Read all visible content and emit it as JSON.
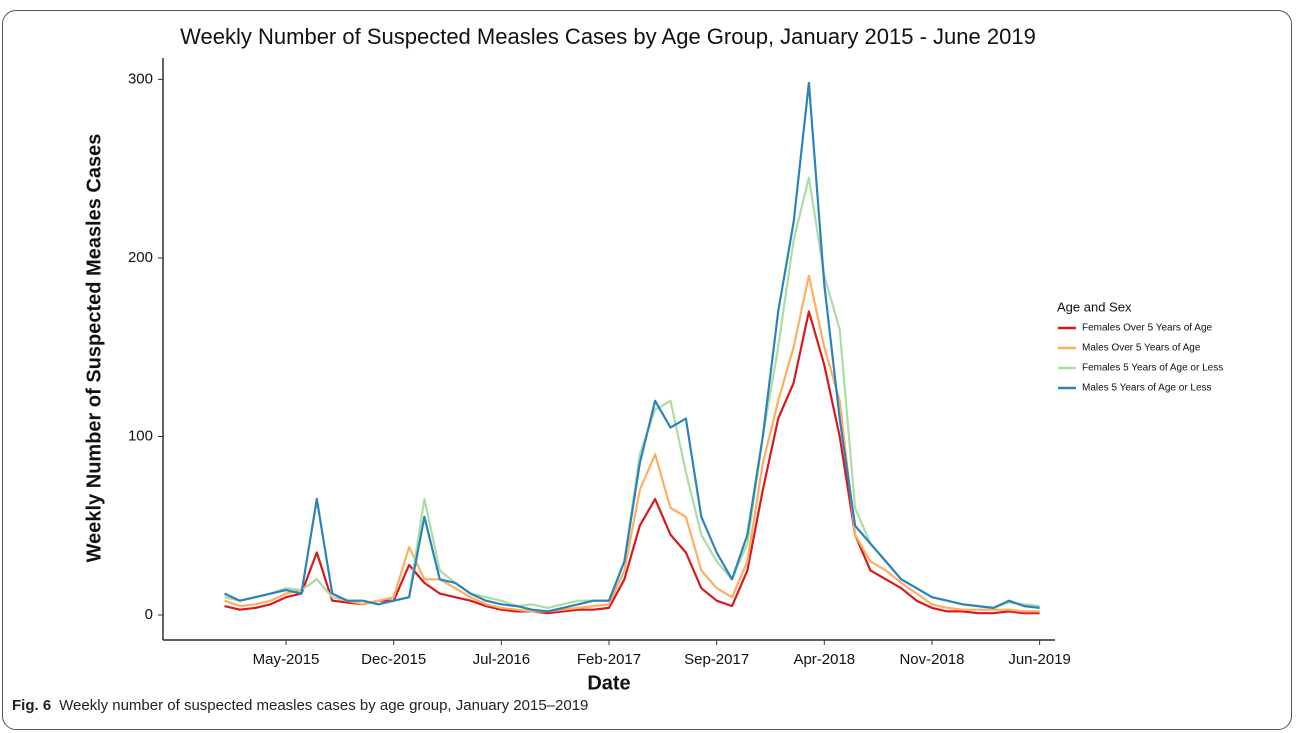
{
  "chart_data": {
    "type": "line",
    "title": "Weekly Number of Suspected Measles Cases by Age Group, January 2015 - June 2019",
    "xlabel": "Date",
    "ylabel": "Weekly Number of Suspected Measles Cases",
    "legend_title": "Age and Sex",
    "legend_position": "right",
    "x": [
      "2015-01",
      "2015-02",
      "2015-03",
      "2015-04",
      "2015-05",
      "2015-06",
      "2015-07",
      "2015-08",
      "2015-09",
      "2015-10",
      "2015-11",
      "2015-12",
      "2016-01",
      "2016-02",
      "2016-03",
      "2016-04",
      "2016-05",
      "2016-06",
      "2016-07",
      "2016-08",
      "2016-09",
      "2016-10",
      "2016-11",
      "2016-12",
      "2017-01",
      "2017-02",
      "2017-03",
      "2017-04",
      "2017-05",
      "2017-06",
      "2017-07",
      "2017-08",
      "2017-09",
      "2017-10",
      "2017-11",
      "2017-12",
      "2018-01",
      "2018-02",
      "2018-03",
      "2018-04",
      "2018-05",
      "2018-06",
      "2018-07",
      "2018-08",
      "2018-09",
      "2018-10",
      "2018-11",
      "2018-12",
      "2019-01",
      "2019-02",
      "2019-03",
      "2019-04",
      "2019-05",
      "2019-06"
    ],
    "xlim": [
      "2014-09",
      "2019-07"
    ],
    "xticks": [
      {
        "value": "2015-05",
        "label": "May-2015"
      },
      {
        "value": "2015-12",
        "label": "Dec-2015"
      },
      {
        "value": "2016-07",
        "label": "Jul-2016"
      },
      {
        "value": "2017-02",
        "label": "Feb-2017"
      },
      {
        "value": "2017-09",
        "label": "Sep-2017"
      },
      {
        "value": "2018-04",
        "label": "Apr-2018"
      },
      {
        "value": "2018-11",
        "label": "Nov-2018"
      },
      {
        "value": "2019-06",
        "label": "Jun-2019"
      }
    ],
    "ylim": [
      -14,
      312
    ],
    "yticks": [
      0,
      100,
      200,
      300
    ],
    "grid": false,
    "series": [
      {
        "name": "Females Over 5 Years of Age",
        "color": "#d7191c",
        "values": [
          5,
          3,
          4,
          6,
          10,
          12,
          35,
          8,
          7,
          6,
          8,
          8,
          28,
          18,
          12,
          10,
          8,
          5,
          3,
          2,
          2,
          1,
          2,
          3,
          3,
          4,
          20,
          50,
          65,
          45,
          35,
          15,
          8,
          5,
          25,
          70,
          110,
          130,
          170,
          140,
          100,
          45,
          25,
          20,
          15,
          8,
          4,
          2,
          2,
          1,
          1,
          2,
          1,
          1
        ]
      },
      {
        "name": "Males Over 5 Years of Age",
        "color": "#fdae61",
        "values": [
          8,
          5,
          6,
          8,
          12,
          14,
          20,
          10,
          8,
          6,
          8,
          10,
          38,
          20,
          20,
          15,
          10,
          6,
          4,
          3,
          2,
          2,
          3,
          4,
          5,
          6,
          25,
          70,
          90,
          60,
          55,
          25,
          15,
          10,
          30,
          85,
          120,
          150,
          190,
          150,
          120,
          45,
          30,
          25,
          18,
          12,
          6,
          4,
          3,
          3,
          3,
          3,
          2,
          2
        ]
      },
      {
        "name": "Females 5 Years of Age or Less",
        "color": "#abdda4",
        "values": [
          10,
          8,
          10,
          12,
          15,
          14,
          20,
          10,
          8,
          8,
          6,
          8,
          10,
          65,
          25,
          18,
          12,
          10,
          8,
          5,
          6,
          4,
          6,
          8,
          8,
          8,
          30,
          90,
          115,
          120,
          80,
          45,
          30,
          20,
          40,
          100,
          150,
          210,
          245,
          190,
          160,
          60,
          40,
          30,
          20,
          15,
          10,
          8,
          6,
          5,
          4,
          7,
          6,
          5
        ]
      },
      {
        "name": "Males 5 Years of Age or Less",
        "color": "#2b83ba",
        "values": [
          12,
          8,
          10,
          12,
          14,
          12,
          65,
          12,
          8,
          8,
          6,
          8,
          10,
          55,
          20,
          18,
          12,
          8,
          6,
          5,
          3,
          2,
          4,
          6,
          8,
          8,
          30,
          85,
          120,
          105,
          110,
          55,
          35,
          20,
          45,
          100,
          170,
          220,
          298,
          185,
          110,
          50,
          40,
          30,
          20,
          15,
          10,
          8,
          6,
          5,
          4,
          8,
          5,
          4
        ]
      }
    ]
  },
  "caption": {
    "label": "Fig. 6",
    "text": "Weekly number of suspected measles cases by age group, January 2015–2019"
  }
}
